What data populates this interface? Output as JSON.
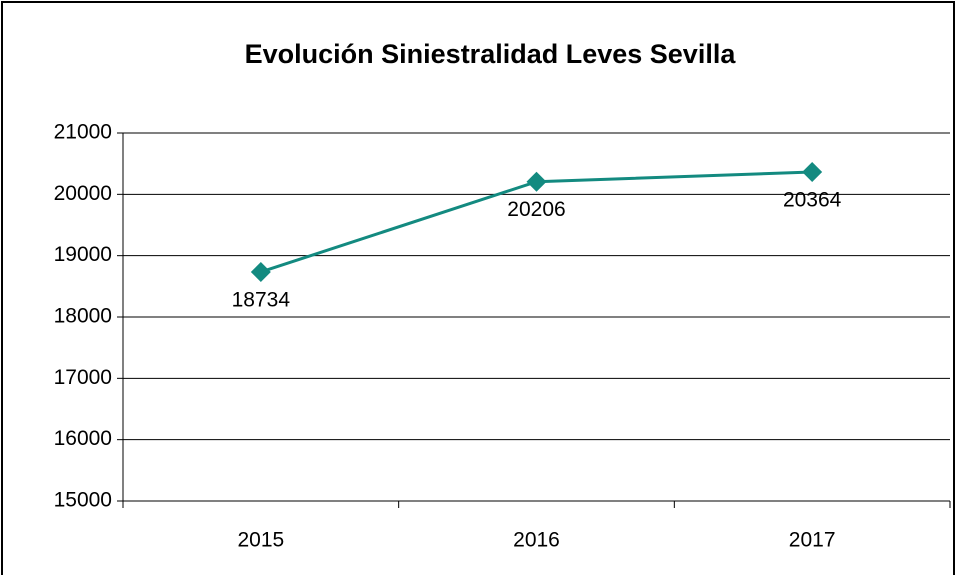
{
  "chart_data": {
    "type": "line",
    "title": "Evolución Siniestralidad Leves Sevilla",
    "categories": [
      "2015",
      "2016",
      "2017"
    ],
    "values": [
      18734,
      20206,
      20364
    ],
    "color": "#138a80",
    "ylim": [
      15000,
      21000
    ],
    "yticks": [
      15000,
      16000,
      17000,
      18000,
      19000,
      20000,
      21000
    ],
    "grid": true
  }
}
